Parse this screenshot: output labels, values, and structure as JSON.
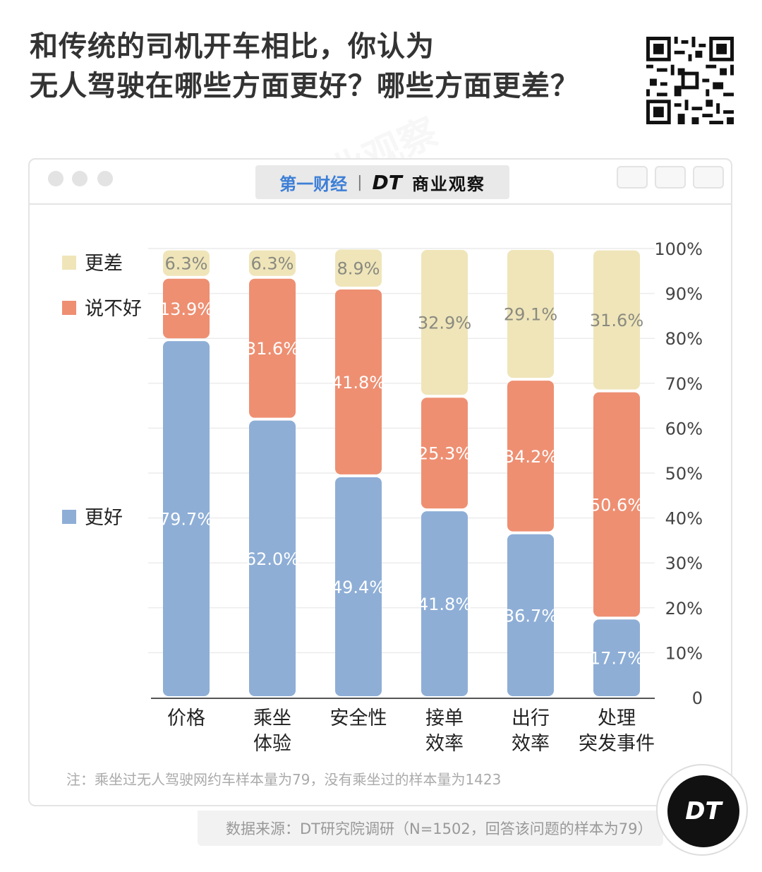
{
  "title": {
    "line1": "和传统的司机开车相比，你认为",
    "line2": "无人驾驶在哪些方面更好？哪些方面更差？"
  },
  "brand": {
    "left": "第一财经",
    "separator": "|",
    "dt": "DT",
    "name": "商业观察"
  },
  "note": "注：乘坐过无人驾驶网约车样本量为79，没有乘坐过的样本量为1423",
  "source": "数据来源：DT研究院调研（N=1502，回答该问题的样本为79）",
  "logo_text": "DT",
  "watermark": "DT商业观察",
  "colors": {
    "better": "#8eaed6",
    "unsure": "#ee8f72",
    "worse": "#efe5b9",
    "axis": "#555555",
    "grid": "#ececec"
  },
  "chart_data": {
    "type": "bar",
    "stacked": true,
    "categories": [
      [
        "价格"
      ],
      [
        "乘坐",
        "体验"
      ],
      [
        "安全性"
      ],
      [
        "接单",
        "效率"
      ],
      [
        "出行",
        "效率"
      ],
      [
        "处理",
        "突发事件"
      ]
    ],
    "series": [
      {
        "name": "更好",
        "values": [
          79.7,
          62.0,
          49.4,
          41.8,
          36.7,
          17.7
        ],
        "labels": [
          "79.7%",
          "62.0%",
          "49.4%",
          "41.8%",
          "36.7%",
          "17.7%"
        ]
      },
      {
        "name": "说不好",
        "values": [
          13.9,
          31.6,
          41.8,
          25.3,
          34.2,
          50.6
        ],
        "labels": [
          "13.9%",
          "31.6%",
          "41.8%",
          "25.3%",
          "34.2%",
          "50.6%"
        ]
      },
      {
        "name": "更差",
        "values": [
          6.3,
          6.3,
          8.9,
          32.9,
          29.1,
          31.6
        ],
        "labels": [
          "6.3%",
          "6.3%",
          "8.9%",
          "32.9%",
          "29.1%",
          "31.6%"
        ]
      }
    ],
    "yticks": [
      "0",
      "10%",
      "20%",
      "30%",
      "40%",
      "50%",
      "60%",
      "70%",
      "80%",
      "90%",
      "100%"
    ],
    "ylim": [
      0,
      100
    ],
    "axis_side": "right",
    "grid": true,
    "legend": "left"
  }
}
